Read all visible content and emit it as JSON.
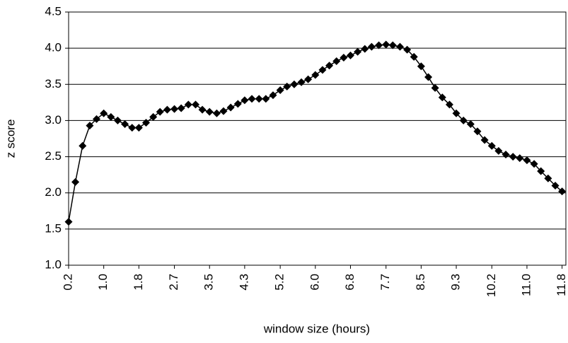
{
  "chart_data": {
    "type": "line",
    "x_label": "window size (hours)",
    "y_label": "z score",
    "x": [
      0.17,
      0.33,
      0.5,
      0.67,
      0.83,
      1.0,
      1.17,
      1.33,
      1.5,
      1.67,
      1.83,
      2.0,
      2.17,
      2.33,
      2.5,
      2.67,
      2.83,
      3.0,
      3.17,
      3.33,
      3.5,
      3.67,
      3.83,
      4.0,
      4.17,
      4.33,
      4.5,
      4.67,
      4.83,
      5.0,
      5.17,
      5.33,
      5.5,
      5.67,
      5.83,
      6.0,
      6.17,
      6.33,
      6.5,
      6.67,
      6.83,
      7.0,
      7.17,
      7.33,
      7.5,
      7.67,
      7.83,
      8.0,
      8.17,
      8.33,
      8.5,
      8.67,
      8.83,
      9.0,
      9.17,
      9.33,
      9.5,
      9.67,
      9.83,
      10.0,
      10.17,
      10.33,
      10.5,
      10.67,
      10.83,
      11.0,
      11.17,
      11.33,
      11.5,
      11.67,
      11.83
    ],
    "values": [
      1.6,
      2.15,
      2.65,
      2.93,
      3.02,
      3.1,
      3.05,
      3.0,
      2.95,
      2.9,
      2.9,
      2.97,
      3.05,
      3.12,
      3.15,
      3.16,
      3.17,
      3.22,
      3.22,
      3.15,
      3.12,
      3.1,
      3.13,
      3.18,
      3.23,
      3.28,
      3.3,
      3.3,
      3.3,
      3.35,
      3.42,
      3.47,
      3.5,
      3.53,
      3.57,
      3.63,
      3.7,
      3.76,
      3.82,
      3.87,
      3.9,
      3.95,
      3.99,
      4.02,
      4.04,
      4.05,
      4.04,
      4.02,
      3.98,
      3.88,
      3.75,
      3.6,
      3.45,
      3.32,
      3.22,
      3.1,
      3.0,
      2.95,
      2.85,
      2.73,
      2.65,
      2.58,
      2.53,
      2.5,
      2.48,
      2.45,
      2.4,
      2.3,
      2.2,
      2.1,
      2.02
    ],
    "color": "#000000",
    "xlim": [
      0.17,
      11.92
    ],
    "xticks": [
      {
        "value": 0.17,
        "label": "0.2"
      },
      {
        "value": 1.0,
        "label": "1.0"
      },
      {
        "value": 1.83,
        "label": "1.8"
      },
      {
        "value": 2.67,
        "label": "2.7"
      },
      {
        "value": 3.5,
        "label": "3.5"
      },
      {
        "value": 4.33,
        "label": "4.3"
      },
      {
        "value": 5.17,
        "label": "5.2"
      },
      {
        "value": 6.0,
        "label": "6.0"
      },
      {
        "value": 6.83,
        "label": "6.8"
      },
      {
        "value": 7.67,
        "label": "7.7"
      },
      {
        "value": 8.5,
        "label": "8.5"
      },
      {
        "value": 9.33,
        "label": "9.3"
      },
      {
        "value": 10.17,
        "label": "10.2"
      },
      {
        "value": 11.0,
        "label": "11.0"
      },
      {
        "value": 11.83,
        "label": "11.8"
      }
    ],
    "ylim": [
      1.0,
      4.5
    ],
    "yticks": [
      {
        "value": 1.0,
        "label": "1.0"
      },
      {
        "value": 1.5,
        "label": "1.5"
      },
      {
        "value": 2.0,
        "label": "2.0"
      },
      {
        "value": 2.5,
        "label": "2.5"
      },
      {
        "value": 3.0,
        "label": "3.0"
      },
      {
        "value": 3.5,
        "label": "3.5"
      },
      {
        "value": 4.0,
        "label": "4.0"
      },
      {
        "value": 4.5,
        "label": "4.5"
      }
    ],
    "grid": true
  }
}
